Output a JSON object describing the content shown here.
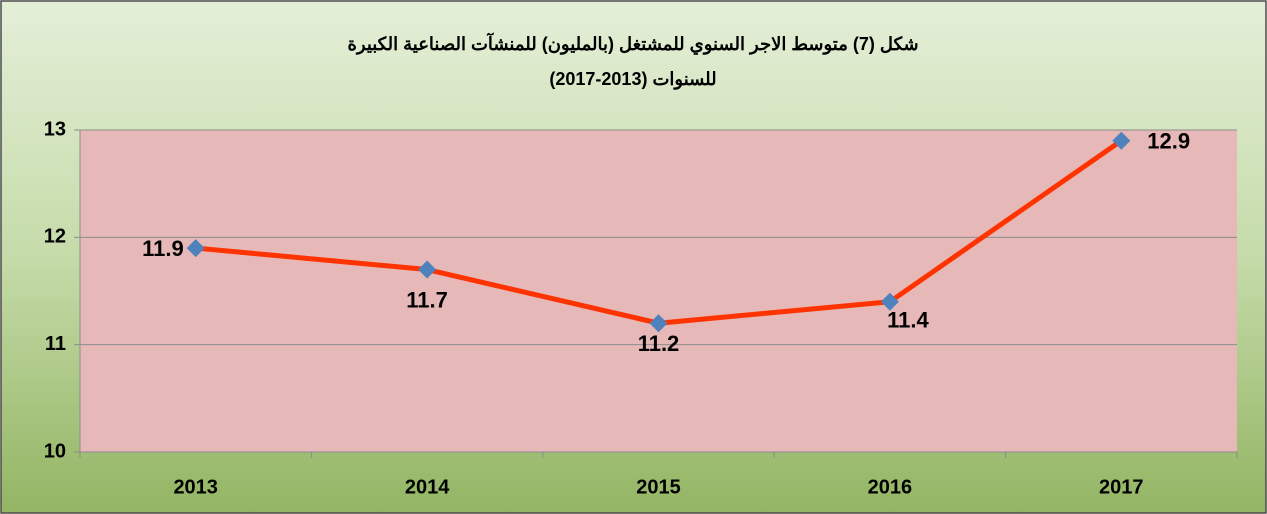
{
  "chart_data": {
    "type": "line",
    "title": [
      "شكل (7) متوسط الاجر السنوي للمشتغل (بالمليون) للمنشآت الصناعية الكبيرة",
      "للسنوات (2013-2017)"
    ],
    "categories": [
      "2013",
      "2014",
      "2015",
      "2016",
      "2017"
    ],
    "series": [
      {
        "color": "#ff3300",
        "marker_color": "#4f81bd",
        "values": [
          11.9,
          11.7,
          11.2,
          11.4,
          12.9
        ]
      }
    ],
    "ylim": [
      10,
      13
    ],
    "yticks": [
      10,
      11,
      12,
      13
    ],
    "grid": true
  }
}
